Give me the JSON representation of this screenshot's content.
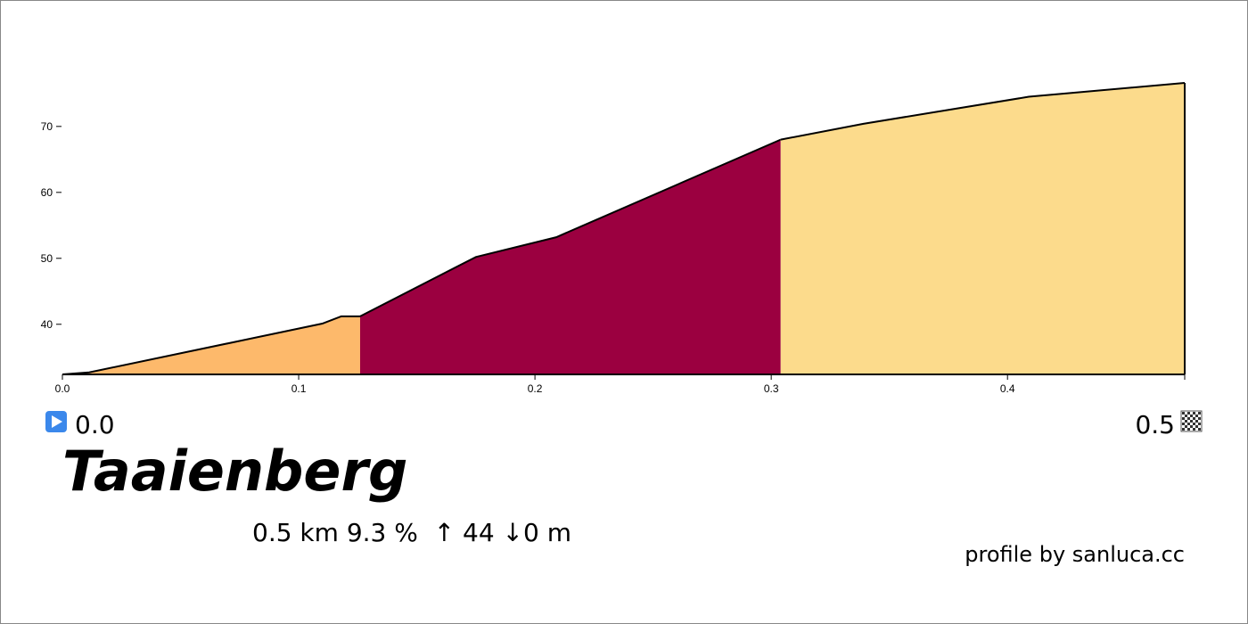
{
  "chart_data": {
    "type": "area",
    "title": "Taaienberg",
    "start_label": "0.0",
    "end_label": "0.5",
    "stats": "0.5 km 9.3 %  ↑ 44 ↓0 m",
    "credit": "profile by sanluca.cc",
    "xlim": [
      0,
      0.475
    ],
    "ylim": [
      32.4,
      76.6
    ],
    "xticks": [
      {
        "value": 0,
        "label": "0.0"
      },
      0.1,
      0.2,
      0.3,
      0.4
    ],
    "yticks": [
      40,
      50,
      60,
      70
    ],
    "series": [
      {
        "color": "#fdb96b",
        "x": [
          0,
          0.0113,
          0.11,
          0.118,
          0.126
        ],
        "values": [
          32.4,
          32.7,
          40.1,
          41.2,
          41.2
        ]
      },
      {
        "color": "#9b0040",
        "x": [
          0.126,
          0.175,
          0.209,
          0.304
        ],
        "values": [
          41.2,
          50.2,
          53.2,
          68.0
        ]
      },
      {
        "color": "#fcdb8c",
        "x": [
          0.304,
          0.339,
          0.409,
          0.475
        ],
        "values": [
          68.0,
          70.4,
          74.5,
          76.6
        ]
      }
    ]
  }
}
